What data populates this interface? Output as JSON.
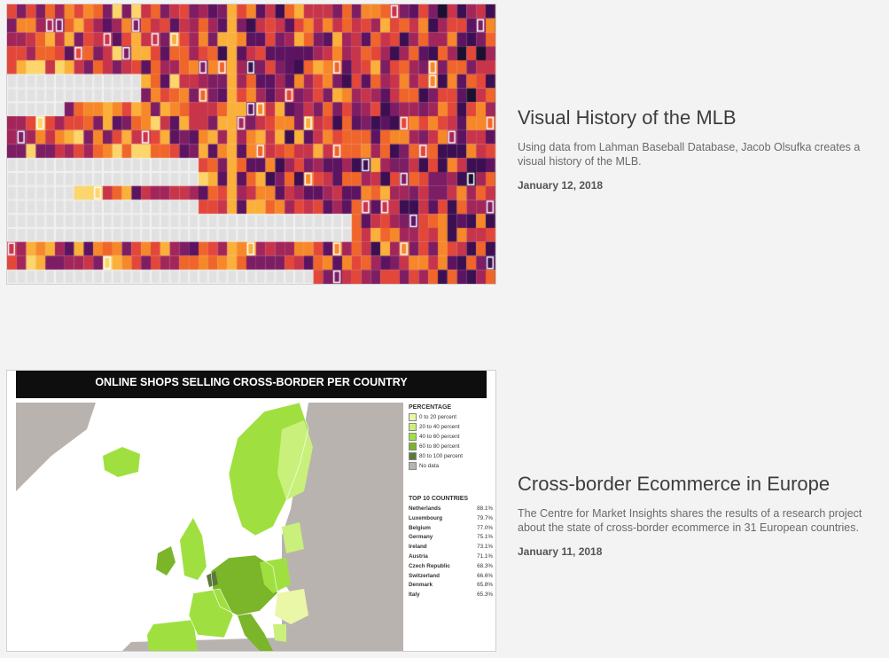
{
  "articles": [
    {
      "title": "Visual History of the MLB",
      "description": "Using data from Lahman Baseball Database, Jacob Olsufka creates a visual history of the MLB.",
      "date": "January 12, 2018"
    },
    {
      "title": "Cross-border Ecommerce in Europe",
      "description": "The Centre for Market Insights shares the results of a research project about the state of cross-border ecommerce in 31 European countries.",
      "date": "January 11, 2018"
    }
  ],
  "map": {
    "header": "ONLINE SHOPS SELLING CROSS-BORDER PER COUNTRY",
    "legend_title": "PERCENTAGE",
    "legend": [
      {
        "label": "0 to 20 percent",
        "color": "#e9f7a6"
      },
      {
        "label": "20 to 40 percent",
        "color": "#c9f07a"
      },
      {
        "label": "40 to 60 percent",
        "color": "#9fe040"
      },
      {
        "label": "60 to 80 percent",
        "color": "#7bb52a"
      },
      {
        "label": "80 to 100 percent",
        "color": "#5b7a3a"
      },
      {
        "label": "No data",
        "color": "#b9b3b0"
      }
    ],
    "top_title": "TOP 10 COUNTRIES",
    "top": [
      {
        "country": "Netherlands",
        "value": "88.1%"
      },
      {
        "country": "Luxembourg",
        "value": "79.7%"
      },
      {
        "country": "Belgium",
        "value": "77.0%"
      },
      {
        "country": "Germany",
        "value": "75.1%"
      },
      {
        "country": "Ireland",
        "value": "73.1%"
      },
      {
        "country": "Austria",
        "value": "71.1%"
      },
      {
        "country": "Czech Republic",
        "value": "68.3%"
      },
      {
        "country": "Switzerland",
        "value": "66.6%"
      },
      {
        "country": "Denmark",
        "value": "65.8%"
      },
      {
        "country": "Italy",
        "value": "65.3%"
      }
    ]
  },
  "heatmap_palette": [
    "#1c1030",
    "#3b0f52",
    "#5c1360",
    "#7d1d63",
    "#a3265a",
    "#c8344a",
    "#e2473a",
    "#f0652a",
    "#f7882a",
    "#fbb03a",
    "#fcd66a"
  ]
}
